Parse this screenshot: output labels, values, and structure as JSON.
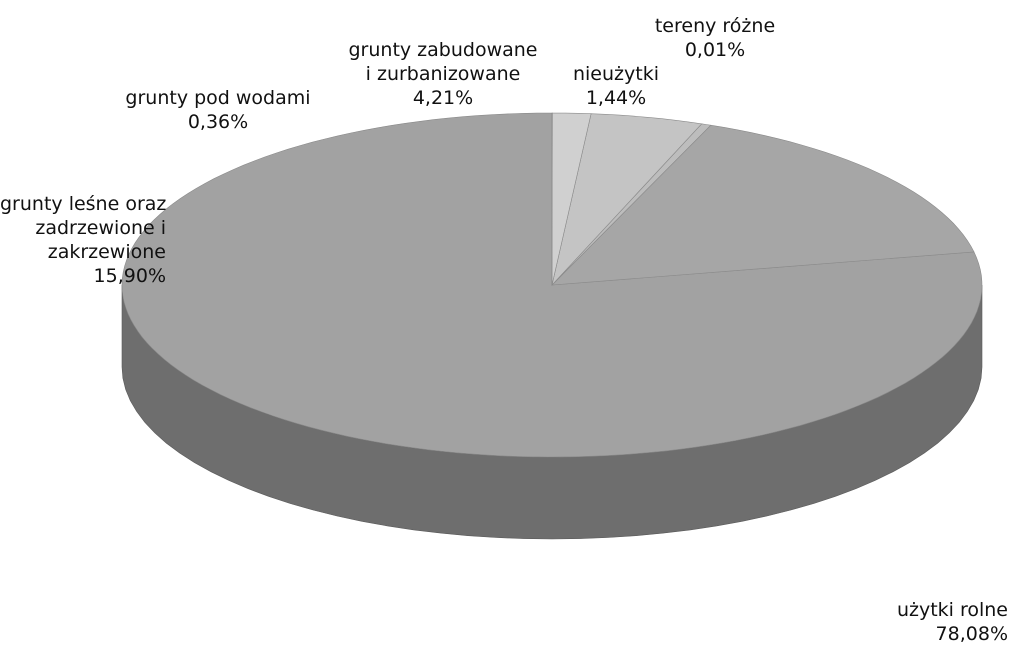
{
  "chart_data": {
    "type": "pie",
    "three_d": true,
    "title": "",
    "slices": [
      {
        "label_lines": [
          "użytki rolne"
        ],
        "value_text": "78,08%",
        "value": 78.08,
        "color": "#a2a2a2",
        "side": "#6e6e6e"
      },
      {
        "label_lines": [
          "grunty leśne oraz",
          "zadrzewione i",
          "zakrzewione"
        ],
        "value_text": "15,90%",
        "value": 15.9,
        "color": "#a6a6a6",
        "side": "#777777"
      },
      {
        "label_lines": [
          "grunty pod wodami"
        ],
        "value_text": "0,36%",
        "value": 0.36,
        "color": "#bdbdbd",
        "side": "#888888"
      },
      {
        "label_lines": [
          "grunty zabudowane",
          "i zurbanizowane"
        ],
        "value_text": "4,21%",
        "value": 4.21,
        "color": "#c4c4c4",
        "side": "#8c8c8c"
      },
      {
        "label_lines": [
          "nieużytki"
        ],
        "value_text": "1,44%",
        "value": 1.44,
        "color": "#d0d0d0",
        "side": "#999999"
      },
      {
        "label_lines": [
          "tereny różne"
        ],
        "value_text": "0,01%",
        "value": 0.01,
        "color": "#dcdcdc",
        "side": "#a0a0a0"
      }
    ]
  }
}
